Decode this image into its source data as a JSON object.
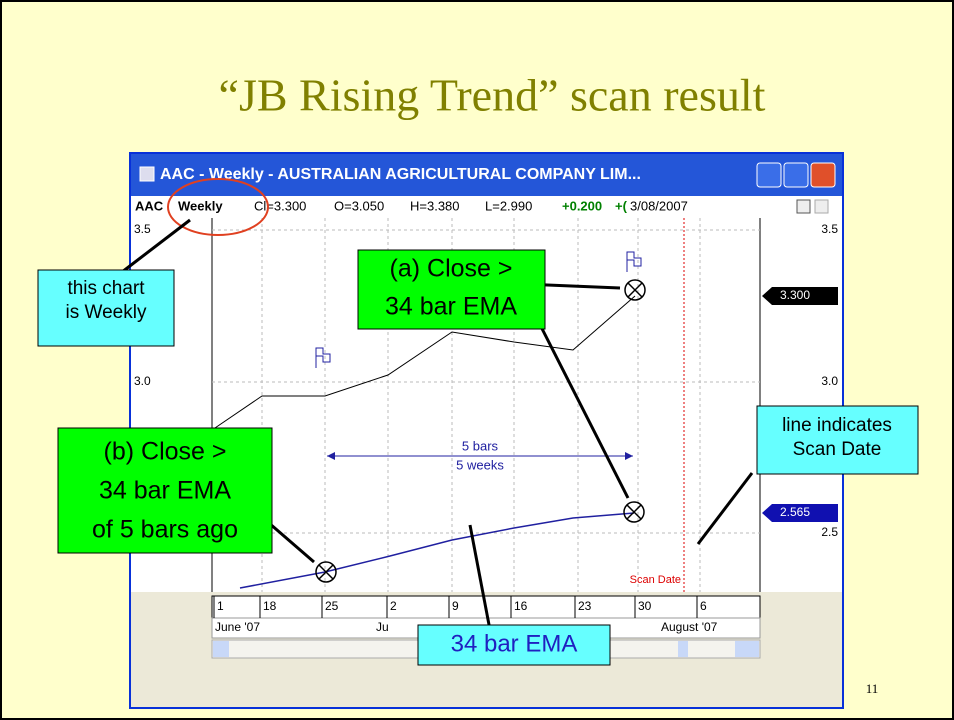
{
  "slide": {
    "title": "“JB Rising Trend” scan result",
    "page_number": "11"
  },
  "window": {
    "title": "AAC - Weekly - AUSTRALIAN AGRICULTURAL COMPANY LIM...",
    "info": {
      "symbol": "AAC",
      "period": "Weekly",
      "close": "Cl=3.300",
      "open": "O=3.050",
      "high": "H=3.380",
      "low": "L=2.990",
      "change": "+0.200",
      "change_pct": "+(",
      "date": "3/08/2007"
    }
  },
  "chart": {
    "y_labels_left": [
      "3.5",
      "3.0"
    ],
    "y_labels_right": [
      "3.5",
      "3.0",
      "2.5"
    ],
    "price_tags": [
      "3.300",
      "2.565"
    ],
    "scan_date_label": "Scan Date",
    "span_label": [
      "5 bars",
      "5 weeks"
    ],
    "x_labels": [
      "1",
      "18",
      "25",
      "2",
      "9",
      "16",
      "23",
      "30",
      "6"
    ],
    "month_labels": [
      "June '07",
      "Ju",
      "August '07"
    ]
  },
  "annotations": {
    "weekly": [
      "this chart",
      "is Weekly"
    ],
    "close_a": [
      "(a) Close >",
      "34 bar EMA"
    ],
    "close_b": [
      "(b) Close >",
      "34 bar EMA",
      "of 5 bars ago"
    ],
    "scan_line": [
      "line indicates",
      "Scan Date"
    ],
    "ema": [
      "34 bar EMA"
    ]
  }
}
